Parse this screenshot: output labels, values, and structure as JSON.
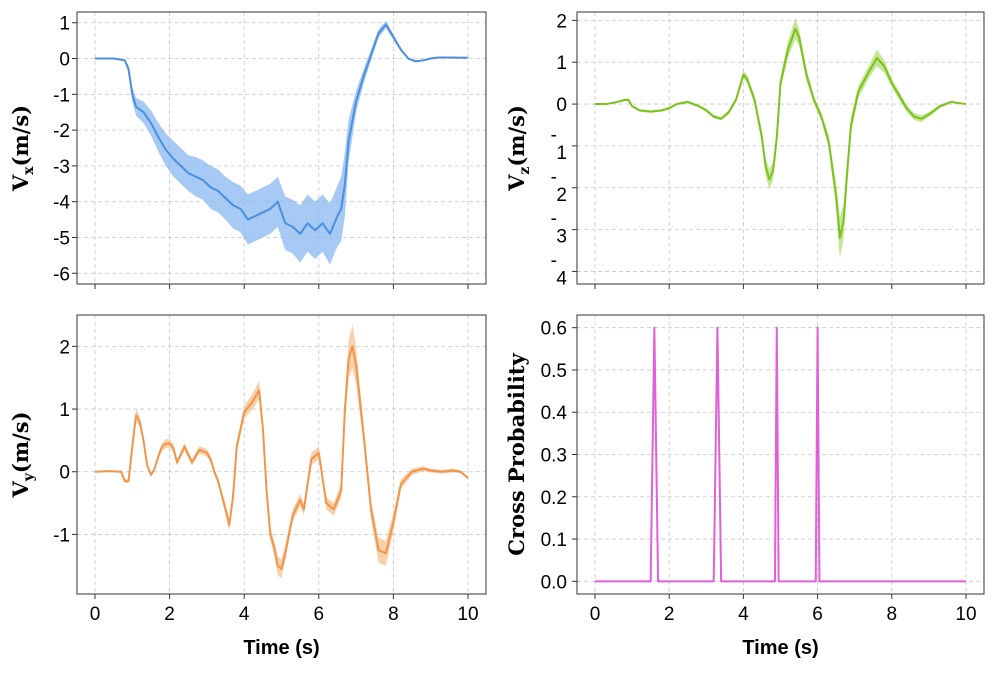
{
  "chart_data": [
    {
      "id": "vx",
      "type": "line",
      "ylabel": "V_x(m/s)",
      "ylabel_main": "V",
      "ylabel_sub": "x",
      "ylabel_unit": "(m/s)",
      "xlabel": "",
      "xlim": [
        0,
        10
      ],
      "ylim": [
        -6.3,
        1.3
      ],
      "xticks": [
        0,
        2,
        4,
        6,
        8,
        10
      ],
      "show_xticklabels": false,
      "yticks": [
        1,
        0,
        -1,
        -2,
        -3,
        -4,
        -5,
        -6
      ],
      "ytick_labels": [
        "1",
        "0",
        "-1",
        "-2",
        "-3",
        "-4",
        "-5",
        "-6"
      ],
      "grid": true,
      "color": "#4a8fe0",
      "band_color": "#8ab8f0",
      "series": [
        {
          "name": "V_x",
          "x": [
            0,
            0.5,
            0.8,
            0.9,
            1.0,
            1.1,
            1.3,
            1.5,
            1.7,
            1.9,
            2.1,
            2.3,
            2.5,
            2.7,
            2.9,
            3.1,
            3.3,
            3.5,
            3.7,
            3.9,
            4.1,
            4.3,
            4.5,
            4.7,
            4.9,
            5.1,
            5.3,
            5.5,
            5.7,
            5.9,
            6.1,
            6.3,
            6.5,
            6.6,
            6.7,
            6.8,
            7.0,
            7.2,
            7.4,
            7.6,
            7.8,
            8.0,
            8.2,
            8.4,
            8.6,
            8.8,
            9.0,
            9.2,
            9.5,
            10.0
          ],
          "y": [
            0,
            0,
            -0.05,
            -0.3,
            -1.0,
            -1.35,
            -1.5,
            -1.8,
            -2.2,
            -2.55,
            -2.8,
            -3.0,
            -3.2,
            -3.3,
            -3.4,
            -3.6,
            -3.7,
            -3.9,
            -4.1,
            -4.2,
            -4.5,
            -4.4,
            -4.3,
            -4.2,
            -4.0,
            -4.6,
            -4.7,
            -4.9,
            -4.6,
            -4.8,
            -4.6,
            -4.9,
            -4.4,
            -4.2,
            -3.5,
            -2.3,
            -1.2,
            -0.5,
            0.1,
            0.7,
            0.95,
            0.6,
            0.25,
            0.0,
            -0.08,
            -0.05,
            0.0,
            0.03,
            0.03,
            0.02
          ],
          "spread": [
            0,
            0,
            0.02,
            0.1,
            0.2,
            0.25,
            0.3,
            0.35,
            0.4,
            0.45,
            0.5,
            0.5,
            0.5,
            0.55,
            0.55,
            0.6,
            0.6,
            0.6,
            0.65,
            0.65,
            0.7,
            0.7,
            0.7,
            0.7,
            0.7,
            0.75,
            0.75,
            0.8,
            0.8,
            0.8,
            0.8,
            0.85,
            0.85,
            0.9,
            0.9,
            0.6,
            0.3,
            0.2,
            0.15,
            0.12,
            0.1,
            0.08,
            0.05,
            0.03,
            0.02,
            0.02,
            0.01,
            0.01,
            0.01,
            0.0
          ]
        }
      ]
    },
    {
      "id": "vz",
      "type": "line",
      "ylabel": "V_z(m/s)",
      "ylabel_main": "V",
      "ylabel_sub": "z",
      "ylabel_unit": "(m/s)",
      "xlabel": "",
      "xlim": [
        0,
        10
      ],
      "ylim": [
        -4.3,
        2.2
      ],
      "xticks": [
        0,
        2,
        4,
        6,
        8,
        10
      ],
      "show_xticklabels": false,
      "yticks": [
        2,
        1,
        0,
        -1,
        -2,
        -3,
        -4
      ],
      "ytick_labels": [
        "2",
        "1",
        "0",
        "-\n1",
        "-\n2",
        "-\n3",
        "-\n4"
      ],
      "grid": true,
      "color": "#7cc21e",
      "band_color": "#b2de6e",
      "series": [
        {
          "name": "V_z",
          "x": [
            0,
            0.3,
            0.6,
            0.8,
            0.9,
            1.0,
            1.2,
            1.5,
            1.8,
            2.0,
            2.2,
            2.5,
            2.8,
            3.0,
            3.2,
            3.4,
            3.6,
            3.8,
            3.9,
            4.0,
            4.1,
            4.3,
            4.5,
            4.6,
            4.7,
            4.8,
            4.9,
            5.0,
            5.2,
            5.4,
            5.5,
            5.7,
            5.9,
            6.1,
            6.3,
            6.5,
            6.6,
            6.7,
            6.8,
            6.9,
            7.1,
            7.4,
            7.6,
            7.8,
            8.0,
            8.2,
            8.4,
            8.6,
            8.8,
            9.0,
            9.3,
            9.6,
            10.0
          ],
          "y": [
            0,
            0.0,
            0.05,
            0.1,
            0.1,
            -0.05,
            -0.15,
            -0.18,
            -0.15,
            -0.1,
            0.0,
            0.05,
            -0.05,
            -0.15,
            -0.3,
            -0.35,
            -0.2,
            0.1,
            0.4,
            0.7,
            0.6,
            0.1,
            -0.8,
            -1.5,
            -1.8,
            -1.6,
            -0.8,
            0.5,
            1.3,
            1.8,
            1.6,
            0.7,
            0.1,
            -0.3,
            -0.9,
            -2.2,
            -3.2,
            -2.8,
            -1.6,
            -0.5,
            0.3,
            0.8,
            1.1,
            0.9,
            0.5,
            0.2,
            -0.1,
            -0.3,
            -0.35,
            -0.25,
            -0.05,
            0.05,
            0.0
          ],
          "spread": [
            0,
            0,
            0.02,
            0.03,
            0.03,
            0.03,
            0.03,
            0.03,
            0.03,
            0.03,
            0.03,
            0.03,
            0.03,
            0.04,
            0.04,
            0.04,
            0.05,
            0.06,
            0.08,
            0.1,
            0.1,
            0.1,
            0.15,
            0.2,
            0.25,
            0.2,
            0.15,
            0.15,
            0.2,
            0.25,
            0.2,
            0.15,
            0.1,
            0.1,
            0.15,
            0.3,
            0.5,
            0.4,
            0.3,
            0.2,
            0.15,
            0.15,
            0.2,
            0.15,
            0.1,
            0.1,
            0.08,
            0.08,
            0.08,
            0.06,
            0.04,
            0.02,
            0.0
          ]
        }
      ]
    },
    {
      "id": "vy",
      "type": "line",
      "ylabel": "V_y(m/s)",
      "ylabel_main": "V",
      "ylabel_sub": "y",
      "ylabel_unit": "(m/s)",
      "xlabel": "Time (s)",
      "xlim": [
        0,
        10
      ],
      "ylim": [
        -1.95,
        2.5
      ],
      "xticks": [
        0,
        2,
        4,
        6,
        8,
        10
      ],
      "show_xticklabels": true,
      "xtick_labels": [
        "0",
        "2",
        "4",
        "6",
        "8",
        "10"
      ],
      "yticks": [
        2,
        1,
        0,
        -1
      ],
      "ytick_labels": [
        "2",
        "1",
        "0",
        "-1"
      ],
      "grid": true,
      "color": "#f2944a",
      "band_color": "#f6c08e",
      "series": [
        {
          "name": "V_y",
          "x": [
            0,
            0.4,
            0.7,
            0.8,
            0.9,
            1.0,
            1.1,
            1.2,
            1.3,
            1.4,
            1.5,
            1.6,
            1.7,
            1.8,
            1.9,
            2.0,
            2.1,
            2.2,
            2.4,
            2.6,
            2.8,
            3.0,
            3.1,
            3.2,
            3.3,
            3.5,
            3.6,
            3.7,
            3.8,
            4.0,
            4.2,
            4.4,
            4.5,
            4.6,
            4.7,
            4.8,
            4.9,
            5.0,
            5.1,
            5.3,
            5.5,
            5.6,
            5.8,
            6.0,
            6.2,
            6.4,
            6.6,
            6.7,
            6.8,
            6.9,
            7.0,
            7.2,
            7.4,
            7.6,
            7.8,
            8.0,
            8.2,
            8.5,
            8.8,
            9.0,
            9.3,
            9.6,
            9.8,
            10.0
          ],
          "y": [
            0,
            0.01,
            0.0,
            -0.15,
            -0.15,
            0.4,
            0.9,
            0.8,
            0.5,
            0.1,
            -0.05,
            0.05,
            0.25,
            0.4,
            0.45,
            0.45,
            0.38,
            0.15,
            0.4,
            0.15,
            0.35,
            0.3,
            0.2,
            0.0,
            -0.15,
            -0.6,
            -0.85,
            -0.4,
            0.4,
            0.95,
            1.1,
            1.3,
            0.7,
            -0.3,
            -1.0,
            -1.2,
            -1.5,
            -1.55,
            -1.3,
            -0.7,
            -0.45,
            -0.6,
            0.2,
            0.3,
            -0.5,
            -0.6,
            -0.3,
            1.0,
            1.8,
            2.0,
            1.7,
            0.6,
            -0.6,
            -1.25,
            -1.3,
            -0.8,
            -0.2,
            0.0,
            0.05,
            0.02,
            0.0,
            0.02,
            0.0,
            -0.1
          ],
          "spread": [
            0,
            0,
            0.02,
            0.03,
            0.03,
            0.06,
            0.1,
            0.08,
            0.06,
            0.04,
            0.03,
            0.03,
            0.05,
            0.06,
            0.07,
            0.07,
            0.06,
            0.05,
            0.06,
            0.05,
            0.06,
            0.06,
            0.05,
            0.05,
            0.05,
            0.08,
            0.1,
            0.08,
            0.08,
            0.1,
            0.12,
            0.15,
            0.12,
            0.1,
            0.1,
            0.12,
            0.15,
            0.15,
            0.12,
            0.1,
            0.1,
            0.1,
            0.1,
            0.1,
            0.1,
            0.1,
            0.12,
            0.2,
            0.3,
            0.35,
            0.3,
            0.15,
            0.15,
            0.2,
            0.2,
            0.15,
            0.08,
            0.05,
            0.04,
            0.03,
            0.03,
            0.03,
            0.02,
            0.02
          ]
        }
      ]
    },
    {
      "id": "cross",
      "type": "line",
      "ylabel": "Cross Probability",
      "xlabel": "Time (s)",
      "xlim": [
        0,
        10
      ],
      "ylim": [
        -0.03,
        0.63
      ],
      "xticks": [
        0,
        2,
        4,
        6,
        8,
        10
      ],
      "show_xticklabels": true,
      "xtick_labels": [
        "0",
        "2",
        "4",
        "6",
        "8",
        "10"
      ],
      "yticks": [
        0.6,
        0.5,
        0.4,
        0.3,
        0.2,
        0.1,
        0.0
      ],
      "ytick_labels": [
        "0.6",
        "0.5",
        "0.4",
        "0.3",
        "0.2",
        "0.1",
        "0.0"
      ],
      "grid": true,
      "color": "#e060d8",
      "series": [
        {
          "name": "Cross Probability",
          "x": [
            0,
            1.5,
            1.6,
            1.7,
            3.2,
            3.3,
            3.4,
            4.85,
            4.9,
            4.95,
            5.95,
            6.0,
            6.05,
            10.0
          ],
          "y": [
            0,
            0,
            0.6,
            0,
            0,
            0.6,
            0,
            0,
            0.6,
            0,
            0,
            0.6,
            0,
            0
          ]
        }
      ]
    }
  ]
}
